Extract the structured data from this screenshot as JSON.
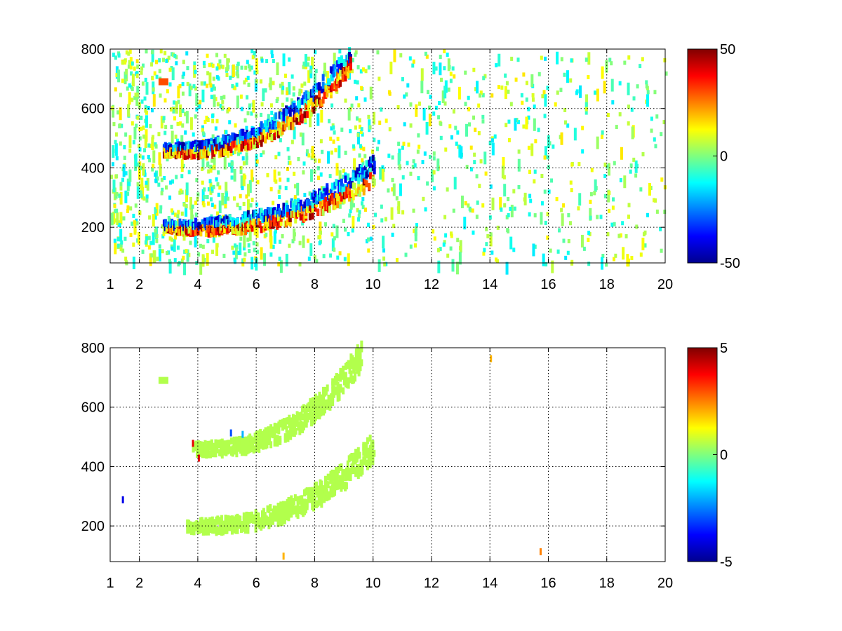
{
  "chart_data": [
    {
      "type": "heatmap",
      "title": "",
      "xlabel": "",
      "ylabel": "",
      "xlim": [
        1,
        20
      ],
      "ylim": [
        80,
        800
      ],
      "x_ticks": [
        1,
        2,
        4,
        6,
        8,
        10,
        12,
        14,
        16,
        18,
        20
      ],
      "y_ticks": [
        200,
        400,
        600,
        800
      ],
      "grid": true,
      "colormap": "jet",
      "colorbar": {
        "range": [
          -50,
          50
        ],
        "ticks": [
          50,
          0,
          -50
        ]
      },
      "features": [
        {
          "name": "lower band",
          "x_range": [
            2.8,
            10.0
          ],
          "y_start": 210,
          "y_end": 400,
          "min_value": -50,
          "max_value": 50
        },
        {
          "name": "upper band",
          "x_range": [
            2.8,
            9.2
          ],
          "y_start": 470,
          "y_end": 780,
          "min_value": -50,
          "max_value": 50
        },
        {
          "name": "blob",
          "x": 2.8,
          "y": 690,
          "value": 30
        }
      ],
      "scattered_noise": {
        "x_range": [
          1,
          20
        ],
        "value_range": [
          -15,
          15
        ]
      }
    },
    {
      "type": "heatmap",
      "title": "",
      "xlabel": "",
      "ylabel": "",
      "xlim": [
        1,
        20
      ],
      "ylim": [
        80,
        800
      ],
      "x_ticks": [
        1,
        2,
        4,
        6,
        8,
        10,
        12,
        14,
        16,
        18,
        20
      ],
      "y_ticks": [
        200,
        400,
        600,
        800
      ],
      "grid": true,
      "colormap": "jet",
      "colorbar": {
        "range": [
          -5,
          5
        ],
        "ticks": [
          5,
          0,
          -5
        ]
      },
      "features": [
        {
          "name": "lower band",
          "x_range": [
            3.6,
            10.0
          ],
          "y_start": 210,
          "y_end": 480,
          "value": 0.5
        },
        {
          "name": "upper band",
          "x_range": [
            3.8,
            9.6
          ],
          "y_start": 470,
          "y_end": 790,
          "value": 0.5
        },
        {
          "name": "blob",
          "x": 2.8,
          "y": 690,
          "value": 0.5
        }
      ],
      "outliers": [
        {
          "x": 14.0,
          "y": 775,
          "value": 2
        },
        {
          "x": 15.7,
          "y": 125,
          "value": 2.5
        },
        {
          "x": 6.9,
          "y": 110,
          "value": 2
        },
        {
          "x": 4.0,
          "y": 440,
          "value": 4
        },
        {
          "x": 3.8,
          "y": 490,
          "value": 4
        },
        {
          "x": 5.1,
          "y": 525,
          "value": -3
        },
        {
          "x": 5.5,
          "y": 520,
          "value": -2
        },
        {
          "x": 1.4,
          "y": 300,
          "value": -4
        }
      ]
    }
  ]
}
